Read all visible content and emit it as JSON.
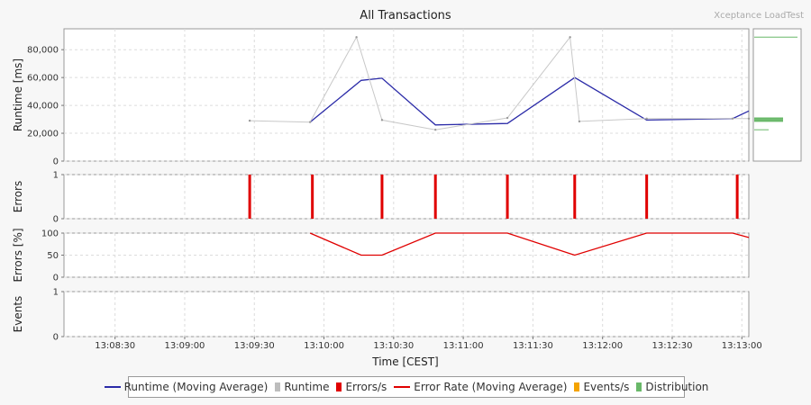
{
  "title": "All Transactions",
  "brand": "Xceptance LoadTest",
  "chart_data": {
    "type": "line",
    "xlabel": "Time [CEST]",
    "x_ticks": [
      "13:08:30",
      "13:09:00",
      "13:09:30",
      "13:10:00",
      "13:10:30",
      "13:11:00",
      "13:11:30",
      "13:12:00",
      "13:12:30",
      "13:13:00"
    ],
    "x_tick_seconds": [
      30,
      60,
      90,
      120,
      150,
      180,
      210,
      240,
      270,
      300
    ],
    "xlim_seconds": [
      8,
      303
    ],
    "panels": [
      {
        "name": "runtime",
        "ylabel": "Runtime [ms]",
        "ylim": [
          0,
          95000
        ],
        "y_ticks": [
          0,
          20000,
          40000,
          60000,
          80000
        ],
        "y_tick_labels": [
          "0",
          "20,000",
          "40,000",
          "60,000",
          "80,000"
        ],
        "series": [
          {
            "name": "Runtime (Moving Average)",
            "color": "#2b2ba8",
            "points": [
              [
                114,
                28000
              ],
              [
                136,
                58000
              ],
              [
                145,
                59500
              ],
              [
                168,
                26000
              ],
              [
                199,
                27000
              ],
              [
                228,
                60000
              ],
              [
                259,
                29500
              ],
              [
                296,
                30500
              ],
              [
                303,
                36000
              ]
            ]
          },
          {
            "name": "Runtime",
            "color": "#c8c8c8",
            "points": [
              [
                88,
                29000
              ],
              [
                114,
                28000
              ],
              [
                134,
                89000
              ],
              [
                145,
                29500
              ],
              [
                168,
                22500
              ],
              [
                199,
                31000
              ],
              [
                226,
                89000
              ],
              [
                230,
                28500
              ],
              [
                259,
                30500
              ],
              [
                296,
                30500
              ],
              [
                303,
                30500
              ]
            ]
          }
        ],
        "distribution": {
          "name": "Distribution",
          "color": "#69b869",
          "values": [
            89000,
            31000,
            30500,
            30000,
            29500,
            29000,
            28500,
            22500
          ]
        }
      },
      {
        "name": "errors",
        "ylabel": "Errors",
        "ylim": [
          0,
          1
        ],
        "y_ticks": [
          0,
          1
        ],
        "y_tick_labels": [
          "0",
          "1"
        ],
        "series": [
          {
            "name": "Errors/s",
            "color": "#e00000",
            "type": "bar",
            "x": [
              88,
              115,
              145,
              168,
              199,
              228,
              259,
              298
            ],
            "values": [
              1,
              1,
              1,
              1,
              1,
              1,
              1,
              1
            ]
          }
        ]
      },
      {
        "name": "error-rate",
        "ylabel": "Errors [%]",
        "ylim": [
          0,
          100
        ],
        "y_ticks": [
          0,
          50,
          100
        ],
        "y_tick_labels": [
          "0",
          "50",
          "100"
        ],
        "series": [
          {
            "name": "Error Rate (Moving Average)",
            "color": "#e00000",
            "points": [
              [
                114,
                100
              ],
              [
                136,
                50
              ],
              [
                145,
                50
              ],
              [
                168,
                100
              ],
              [
                199,
                100
              ],
              [
                228,
                50
              ],
              [
                259,
                100
              ],
              [
                296,
                100
              ],
              [
                303,
                90
              ]
            ]
          }
        ]
      },
      {
        "name": "events",
        "ylabel": "Events",
        "ylim": [
          0,
          1
        ],
        "y_ticks": [
          0,
          1
        ],
        "y_tick_labels": [
          "0",
          "1"
        ],
        "series": []
      }
    ],
    "legend": [
      {
        "label": "Runtime (Moving Average)",
        "color": "#2b2ba8",
        "shape": "line"
      },
      {
        "label": "Runtime",
        "color": "#bdbdbd",
        "shape": "box"
      },
      {
        "label": "Errors/s",
        "color": "#e00000",
        "shape": "box"
      },
      {
        "label": "Error Rate (Moving Average)",
        "color": "#e00000",
        "shape": "line"
      },
      {
        "label": "Events/s",
        "color": "#f4a300",
        "shape": "box"
      },
      {
        "label": "Distribution",
        "color": "#69b869",
        "shape": "box"
      }
    ],
    "legend_position": "bottom",
    "grid": true
  }
}
